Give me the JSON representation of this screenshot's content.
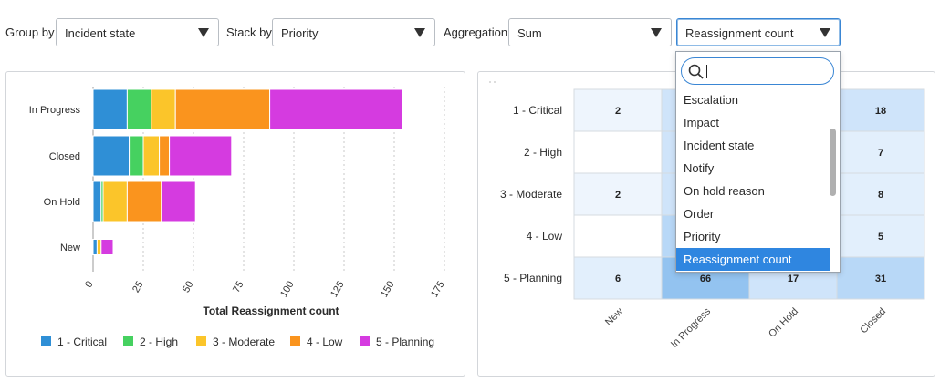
{
  "toolbar": {
    "group_by_label": "Group by",
    "group_by_value": "Incident state",
    "stack_by_label": "Stack by",
    "stack_by_value": "Priority",
    "aggregation_label": "Aggregation",
    "aggregation_value": "Sum",
    "field_value": "Reassignment count"
  },
  "dropdown": {
    "search_value": "",
    "items": [
      "Escalation",
      "Impact",
      "Incident state",
      "Notify",
      "On hold reason",
      "Order",
      "Priority",
      "Reassignment count"
    ],
    "selected": "Reassignment count"
  },
  "colors": {
    "critical": "#2f8fd6",
    "high": "#46d160",
    "moderate": "#fbc52a",
    "low": "#fa941e",
    "planning": "#d53be0",
    "heat_light": "#dcecfb",
    "heat_mid": "#b8d8f7",
    "heat_dark": "#93c3f0"
  },
  "chart_data": [
    {
      "type": "bar",
      "orientation": "horizontal",
      "stacked": true,
      "categories": [
        "In Progress",
        "Closed",
        "On Hold",
        "New"
      ],
      "series": [
        {
          "name": "1 - Critical",
          "values": [
            17,
            18,
            4,
            2
          ]
        },
        {
          "name": "2 - High",
          "values": [
            12,
            7,
            1,
            0
          ]
        },
        {
          "name": "3 - Moderate",
          "values": [
            12,
            8,
            12,
            2
          ]
        },
        {
          "name": "4 - Low",
          "values": [
            47,
            5,
            17,
            0
          ]
        },
        {
          "name": "5 - Planning",
          "values": [
            66,
            31,
            17,
            6
          ]
        }
      ],
      "xlabel": "Total Reassignment count",
      "ylabel": "",
      "xlim": [
        0,
        175
      ],
      "xticks": [
        "0",
        "25",
        "50",
        "75",
        "100",
        "125",
        "150",
        "175"
      ],
      "grid": true,
      "legend_position": "bottom"
    },
    {
      "type": "heatmap",
      "rows": [
        "1 - Critical",
        "2 - High",
        "3 - Moderate",
        "4 - Low",
        "5 - Planning"
      ],
      "columns": [
        "New",
        "In Progress",
        "On Hold",
        "Closed"
      ],
      "values": [
        [
          "2",
          "",
          "",
          "18"
        ],
        [
          "",
          "",
          "",
          "7"
        ],
        [
          "2",
          "",
          "",
          "8"
        ],
        [
          "",
          "",
          "",
          "5"
        ],
        [
          "6",
          "66",
          "17",
          "31"
        ]
      ],
      "levels": [
        [
          0.05,
          0.25,
          0.05,
          0.3
        ],
        [
          0.0,
          0.25,
          0.0,
          0.15
        ],
        [
          0.05,
          0.25,
          0.05,
          0.15
        ],
        [
          0.0,
          0.45,
          0.05,
          0.1
        ],
        [
          0.15,
          1.0,
          0.3,
          0.5
        ]
      ]
    }
  ]
}
